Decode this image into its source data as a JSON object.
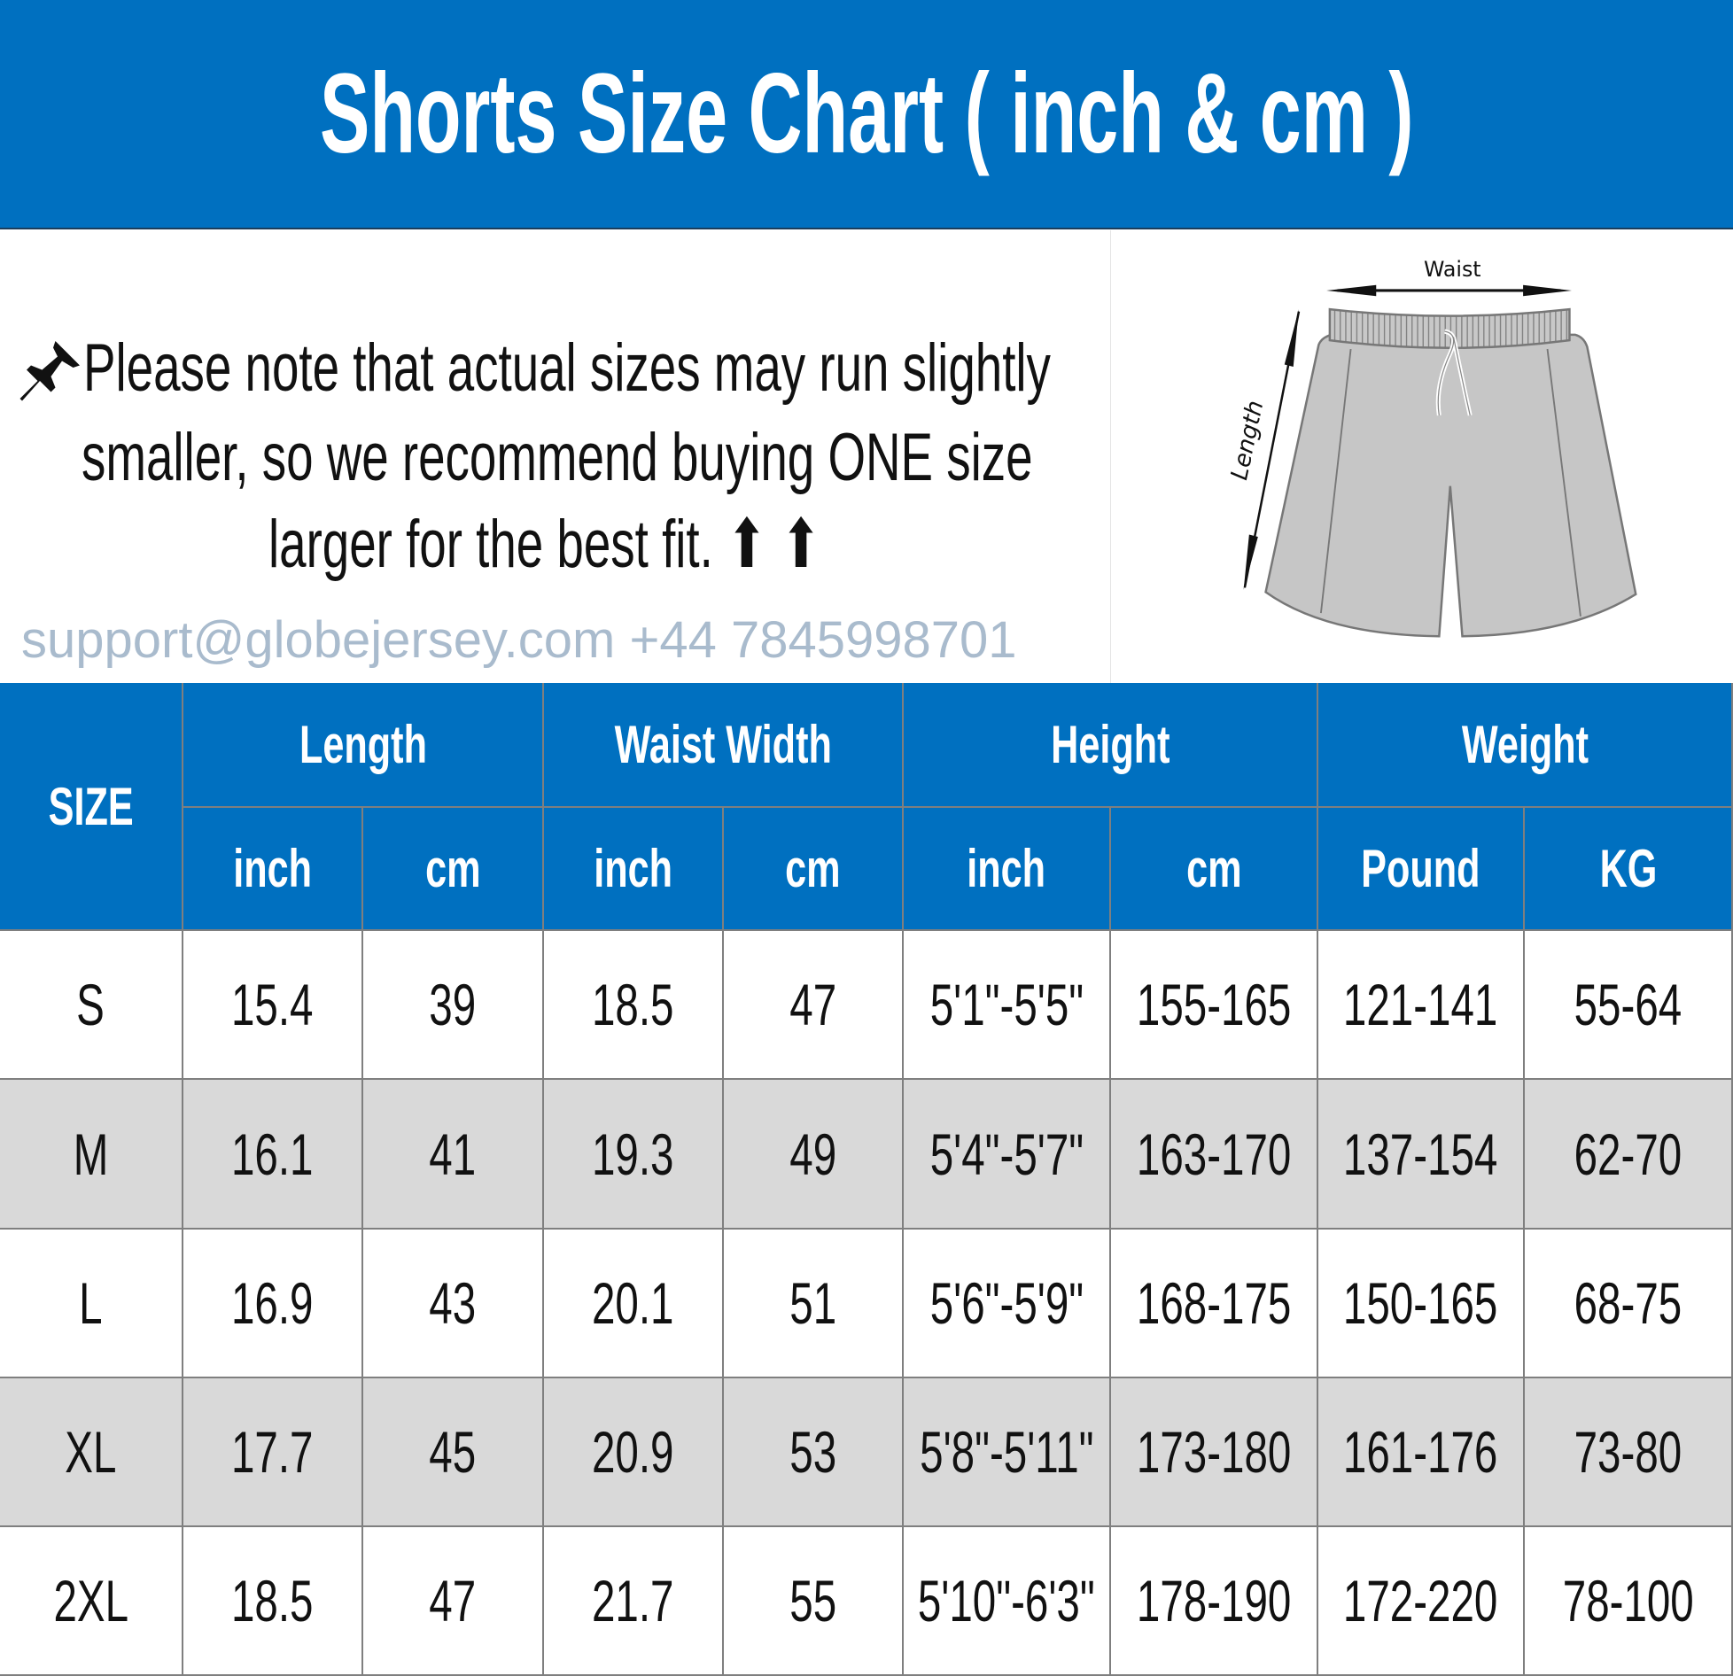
{
  "title": "Shorts Size Chart ( inch & cm )",
  "note": {
    "icon": "pushpin-icon",
    "lines": [
      "Please note that actual sizes may run slightly",
      "smaller, so we recommend buying ONE size",
      "larger for the best fit. ⬆ ⬆"
    ]
  },
  "diagram": {
    "waist_label": "Waist",
    "length_label": "Length"
  },
  "watermark": "support@globejersey.com  +44 7845998701",
  "table": {
    "size_header": "SIZE",
    "groups": [
      "Length",
      "Waist Width",
      "Height",
      "Weight"
    ],
    "subheaders": [
      "inch",
      "cm",
      "inch",
      "cm",
      "inch",
      "cm",
      "Pound",
      "KG"
    ],
    "rows": [
      [
        "S",
        "15.4",
        "39",
        "18.5",
        "47",
        "5'1\"-5'5\"",
        "155-165",
        "121-141",
        "55-64"
      ],
      [
        "M",
        "16.1",
        "41",
        "19.3",
        "49",
        "5'4\"-5'7\"",
        "163-170",
        "137-154",
        "62-70"
      ],
      [
        "L",
        "16.9",
        "43",
        "20.1",
        "51",
        "5'6\"-5'9\"",
        "168-175",
        "150-165",
        "68-75"
      ],
      [
        "XL",
        "17.7",
        "45",
        "20.9",
        "53",
        "5'8\"-5'11\"",
        "173-180",
        "161-176",
        "73-80"
      ],
      [
        "2XL",
        "18.5",
        "47",
        "21.7",
        "55",
        "5'10\"-6'3\"",
        "178-190",
        "172-220",
        "78-100"
      ]
    ]
  },
  "colors": {
    "header_blue": "#0070C0",
    "row_gray": "#D9D9D9",
    "border": "#7F7F7F"
  }
}
